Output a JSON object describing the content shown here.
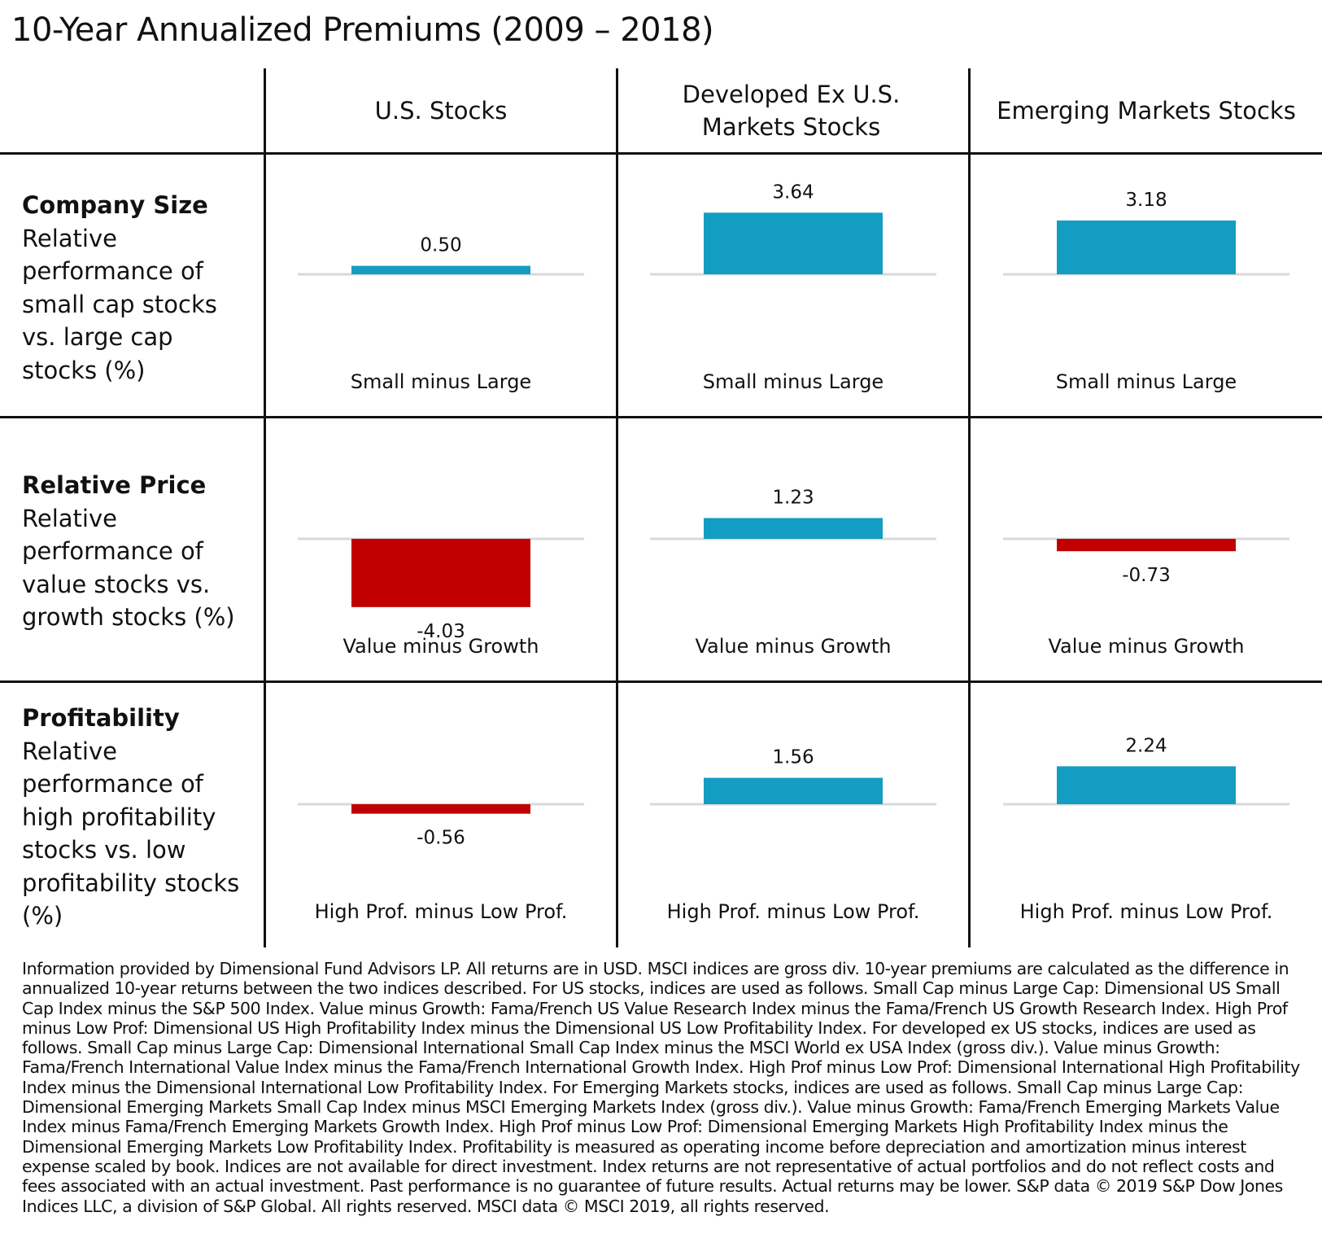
{
  "title": "10-Year Annualized Premiums (2009 – 2018)",
  "columns": [
    "U.S. Stocks",
    "Developed Ex U.S. Markets Stocks",
    "Emerging Markets Stocks"
  ],
  "rows": [
    {
      "title": "Company Size",
      "description": "Relative performance of small cap stocks vs. large cap stocks (%)"
    },
    {
      "title": "Relative Price",
      "description": "Relative performance of value stocks vs. growth stocks (%)"
    },
    {
      "title": "Profitability",
      "description": "Relative performance of high profitability stocks vs. low profitability stocks (%)"
    }
  ],
  "colors": {
    "positive": "#149dc2",
    "negative": "#c00000",
    "baseline": "#d9d9d9",
    "grid": "#111111"
  },
  "chart_data": [
    {
      "type": "bar",
      "row": "Company Size",
      "column": "U.S. Stocks",
      "label": "Small minus Large",
      "value": 0.5,
      "value_text": "0.50"
    },
    {
      "type": "bar",
      "row": "Company Size",
      "column": "Developed Ex U.S. Markets Stocks",
      "label": "Small minus Large",
      "value": 3.64,
      "value_text": "3.64"
    },
    {
      "type": "bar",
      "row": "Company Size",
      "column": "Emerging Markets Stocks",
      "label": "Small minus Large",
      "value": 3.18,
      "value_text": "3.18"
    },
    {
      "type": "bar",
      "row": "Relative Price",
      "column": "U.S. Stocks",
      "label": "Value minus Growth",
      "value": -4.03,
      "value_text": "-4.03"
    },
    {
      "type": "bar",
      "row": "Relative Price",
      "column": "Developed Ex U.S. Markets Stocks",
      "label": "Value minus Growth",
      "value": 1.23,
      "value_text": "1.23"
    },
    {
      "type": "bar",
      "row": "Relative Price",
      "column": "Emerging Markets Stocks",
      "label": "Value minus Growth",
      "value": -0.73,
      "value_text": "-0.73"
    },
    {
      "type": "bar",
      "row": "Profitability",
      "column": "U.S. Stocks",
      "label": "High Prof. minus Low Prof.",
      "value": -0.56,
      "value_text": "-0.56"
    },
    {
      "type": "bar",
      "row": "Profitability",
      "column": "Developed Ex U.S. Markets Stocks",
      "label": "High Prof. minus Low Prof.",
      "value": 1.56,
      "value_text": "1.56"
    },
    {
      "type": "bar",
      "row": "Profitability",
      "column": "Emerging Markets Stocks",
      "label": "High Prof. minus Low Prof.",
      "value": 2.24,
      "value_text": "2.24"
    }
  ],
  "footnote": "Information provided by Dimensional Fund Advisors LP. All returns are in USD. MSCI indices are gross div. 10-year premiums are calculated as the difference in annualized 10-year returns between the two indices described. For US stocks, indices are used as follows. Small Cap minus Large Cap: Dimensional US Small Cap Index minus the S&P 500 Index. Value minus Growth: Fama/French US Value Research Index minus the Fama/French US Growth Research Index. High Prof minus Low Prof: Dimensional US High Profitability Index minus the Dimensional US Low Profitability Index. For developed ex US stocks, indices are used as follows. Small Cap minus Large Cap: Dimensional International Small Cap Index minus the MSCI World ex USA Index (gross div.). Value minus Growth: Fama/French International Value Index minus the Fama/French International Growth Index. High Prof minus Low Prof: Dimensional International High Profitability Index minus the Dimensional International Low Profitability Index. For Emerging Markets stocks, indices are used as follows. Small Cap minus Large Cap: Dimensional Emerging Markets Small Cap Index minus MSCI Emerging Markets Index (gross div.). Value minus Growth: Fama/French Emerging Markets Value Index minus Fama/French Emerging Markets Growth Index. High Prof minus Low Prof: Dimensional Emerging Markets High Profitability Index minus the Dimensional Emerging Markets Low Profitability Index. Profitability is measured as operating income before depreciation and amortization minus interest expense scaled by book.  Indices are not available for direct investment. Index returns are not representative of actual portfolios and do not reflect costs and fees associated with an actual investment. Past performance is no guarantee of future results. Actual returns may be lower. S&P data © 2019 S&P Dow Jones Indices LLC, a division of S&P Global. All rights reserved. MSCI data © MSCI 2019, all rights reserved."
}
